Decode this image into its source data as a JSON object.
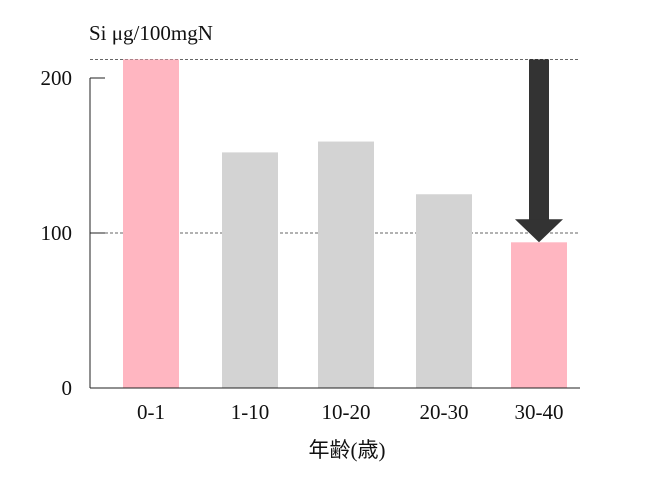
{
  "chart_data": {
    "type": "bar",
    "ylabel": "Si μg/100mgN",
    "xlabel": "年齢(歳)",
    "categories": [
      "0-1",
      "1-10",
      "10-20",
      "20-30",
      "30-40"
    ],
    "values": [
      212,
      152,
      159,
      125,
      94
    ],
    "bar_colors": [
      "#ffb6c1",
      "#d3d3d3",
      "#d3d3d3",
      "#d3d3d3",
      "#ffb6c1"
    ],
    "ylim": [
      0,
      200
    ],
    "yticks": [
      "0",
      "100",
      "200"
    ],
    "reference_lines": [
      212,
      100
    ],
    "arrow": {
      "from_value": 212,
      "to_value": 94,
      "category": "30-40",
      "color": "#333333"
    },
    "grid": false
  }
}
